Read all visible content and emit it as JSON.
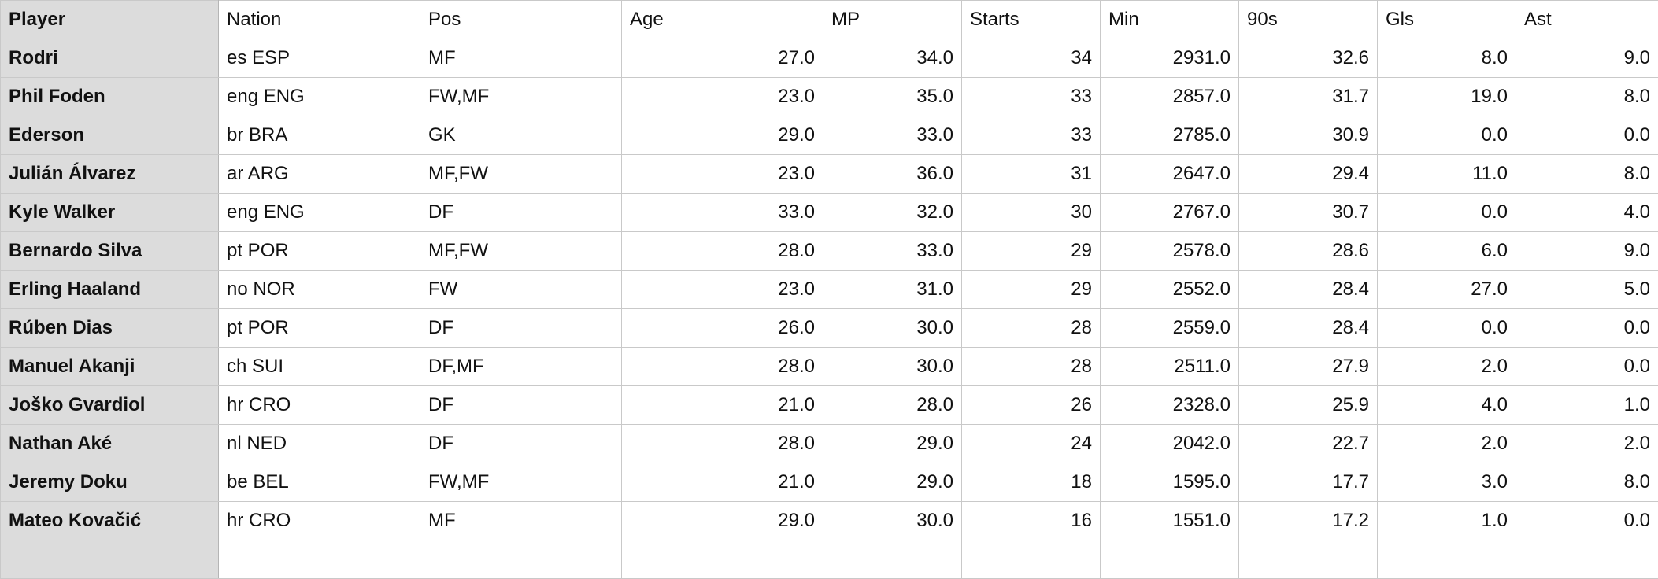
{
  "table": {
    "columns": [
      "Player",
      "Nation",
      "Pos",
      "Age",
      "MP",
      "Starts",
      "Min",
      "90s",
      "Gls",
      "Ast"
    ],
    "numeric_columns": [
      false,
      false,
      false,
      true,
      true,
      true,
      true,
      true,
      true,
      true
    ],
    "rows": [
      [
        "Rodri",
        "es ESP",
        "MF",
        "27.0",
        "34.0",
        "34",
        "2931.0",
        "32.6",
        "8.0",
        "9.0"
      ],
      [
        "Phil Foden",
        "eng ENG",
        "FW,MF",
        "23.0",
        "35.0",
        "33",
        "2857.0",
        "31.7",
        "19.0",
        "8.0"
      ],
      [
        "Ederson",
        "br BRA",
        "GK",
        "29.0",
        "33.0",
        "33",
        "2785.0",
        "30.9",
        "0.0",
        "0.0"
      ],
      [
        "Julián Álvarez",
        "ar ARG",
        "MF,FW",
        "23.0",
        "36.0",
        "31",
        "2647.0",
        "29.4",
        "11.0",
        "8.0"
      ],
      [
        "Kyle Walker",
        "eng ENG",
        "DF",
        "33.0",
        "32.0",
        "30",
        "2767.0",
        "30.7",
        "0.0",
        "4.0"
      ],
      [
        "Bernardo Silva",
        "pt POR",
        "MF,FW",
        "28.0",
        "33.0",
        "29",
        "2578.0",
        "28.6",
        "6.0",
        "9.0"
      ],
      [
        "Erling Haaland",
        "no NOR",
        "FW",
        "23.0",
        "31.0",
        "29",
        "2552.0",
        "28.4",
        "27.0",
        "5.0"
      ],
      [
        "Rúben Dias",
        "pt POR",
        "DF",
        "26.0",
        "30.0",
        "28",
        "2559.0",
        "28.4",
        "0.0",
        "0.0"
      ],
      [
        "Manuel Akanji",
        "ch SUI",
        "DF,MF",
        "28.0",
        "30.0",
        "28",
        "2511.0",
        "27.9",
        "2.0",
        "0.0"
      ],
      [
        "Joško Gvardiol",
        "hr CRO",
        "DF",
        "21.0",
        "28.0",
        "26",
        "2328.0",
        "25.9",
        "4.0",
        "1.0"
      ],
      [
        "Nathan Aké",
        "nl NED",
        "DF",
        "28.0",
        "29.0",
        "24",
        "2042.0",
        "22.7",
        "2.0",
        "2.0"
      ],
      [
        "Jeremy Doku",
        "be BEL",
        "FW,MF",
        "21.0",
        "29.0",
        "18",
        "1595.0",
        "17.7",
        "3.0",
        "8.0"
      ],
      [
        "Mateo Kovačić",
        "hr CRO",
        "MF",
        "29.0",
        "30.0",
        "16",
        "1551.0",
        "17.2",
        "1.0",
        "0.0"
      ]
    ]
  }
}
